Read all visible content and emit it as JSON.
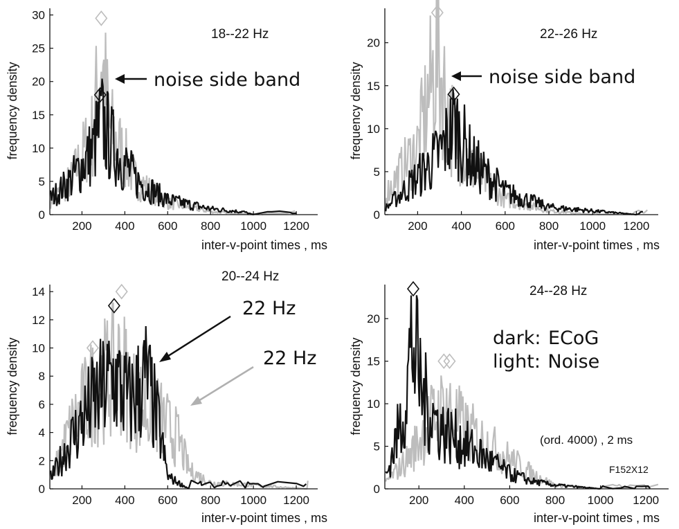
{
  "chart_data": [
    {
      "type": "line",
      "title": "18--22 Hz",
      "xlabel": "inter-v-point times ,  ms",
      "ylabel": "frequency density",
      "xlim": [
        50,
        1300
      ],
      "ylim": [
        0,
        31
      ],
      "xticks": [
        200,
        400,
        600,
        800,
        1000,
        1200
      ],
      "yticks": [
        0,
        5,
        10,
        15,
        20,
        25,
        30
      ],
      "series": [
        {
          "name": "dark",
          "color": "#111111",
          "x": [
            60,
            150,
            250,
            290,
            340,
            450,
            600,
            800,
            950,
            1000
          ],
          "y": [
            3,
            6,
            11,
            16,
            12,
            6,
            2.5,
            1,
            0.5,
            0
          ]
        },
        {
          "name": "light",
          "color": "#bdbdbd",
          "x": [
            60,
            150,
            250,
            290,
            330,
            450,
            600,
            800,
            1000
          ],
          "y": [
            2.5,
            6,
            14,
            27,
            15,
            6,
            2,
            0.5,
            0
          ]
        }
      ],
      "markers": [
        {
          "series": "light",
          "x": 290,
          "y": 29.5
        },
        {
          "series": "dark",
          "x": 285,
          "y": 18
        }
      ],
      "annotations": [
        {
          "text": "noise side band"
        }
      ]
    },
    {
      "type": "line",
      "title": "22--26 Hz",
      "xlabel": "inter-v-point times ,  ms",
      "ylabel": "frequency density",
      "xlim": [
        50,
        1300
      ],
      "ylim": [
        0,
        24
      ],
      "xticks": [
        200,
        400,
        600,
        800,
        1000,
        1200
      ],
      "yticks": [
        0,
        5,
        10,
        15,
        20
      ],
      "series": [
        {
          "name": "dark",
          "color": "#111111",
          "x": [
            60,
            200,
            300,
            370,
            450,
            600,
            800,
            1000,
            1200
          ],
          "y": [
            1,
            5,
            8,
            12,
            7,
            3,
            1,
            0.5,
            0
          ]
        },
        {
          "name": "light",
          "color": "#bdbdbd",
          "x": [
            60,
            200,
            290,
            350,
            450,
            600,
            800,
            1000
          ],
          "y": [
            3,
            9,
            21,
            12,
            6,
            2,
            0.5,
            0
          ]
        }
      ],
      "markers": [
        {
          "series": "light",
          "x": 290,
          "y": 23.5
        },
        {
          "series": "dark",
          "x": 365,
          "y": 14
        }
      ],
      "annotations": [
        {
          "text": "noise side band"
        }
      ]
    },
    {
      "type": "line",
      "title": "20--24 Hz",
      "xlabel": "inter-v-point times ,  ms",
      "ylabel": "frequency density",
      "xlim": [
        50,
        1300
      ],
      "ylim": [
        0,
        14.5
      ],
      "xticks": [
        200,
        400,
        600,
        800,
        1000,
        1200
      ],
      "yticks": [
        0,
        2,
        4,
        6,
        8,
        10,
        12,
        14
      ],
      "series": [
        {
          "name": "dark",
          "color": "#111111",
          "x": [
            60,
            150,
            250,
            350,
            420,
            500,
            560,
            600,
            700
          ],
          "y": [
            1,
            4,
            7,
            9,
            7,
            9,
            5,
            1,
            0
          ]
        },
        {
          "name": "light",
          "color": "#bdbdbd",
          "x": [
            60,
            150,
            250,
            380,
            450,
            550,
            650,
            700,
            800,
            1000,
            1250
          ],
          "y": [
            1,
            5,
            8,
            10,
            7,
            6,
            4,
            1.5,
            0.5,
            0.3,
            0
          ]
        }
      ],
      "markers": [
        {
          "series": "light",
          "x": 250,
          "y": 10
        },
        {
          "series": "dark",
          "x": 350,
          "y": 13
        },
        {
          "series": "light",
          "x": 385,
          "y": 14
        }
      ],
      "annotations": [
        {
          "text": "22 Hz"
        },
        {
          "text": "22 Hz"
        }
      ]
    },
    {
      "type": "line",
      "title": "24--28 Hz",
      "xlabel": "inter-v-point times ,  ms",
      "ylabel": "frequency density",
      "xlim": [
        50,
        1300
      ],
      "ylim": [
        0,
        24
      ],
      "xticks": [
        200,
        400,
        600,
        800,
        1000,
        1200
      ],
      "yticks": [
        0,
        5,
        10,
        15,
        20
      ],
      "series": [
        {
          "name": "dark",
          "color": "#111111",
          "x": [
            60,
            130,
            170,
            220,
            300,
            400,
            500,
            600,
            700,
            800,
            1000
          ],
          "y": [
            2,
            10,
            20,
            12,
            8,
            6,
            4,
            2,
            1,
            0.5,
            0
          ]
        },
        {
          "name": "light",
          "color": "#bdbdbd",
          "x": [
            60,
            150,
            250,
            320,
            400,
            500,
            600,
            700,
            800,
            1000
          ],
          "y": [
            1,
            4,
            9,
            11,
            8,
            6,
            4,
            2,
            0.5,
            0
          ]
        }
      ],
      "markers": [
        {
          "series": "dark",
          "x": 175,
          "y": 23.5
        },
        {
          "series": "light",
          "x": 310,
          "y": 15
        },
        {
          "series": "light",
          "x": 335,
          "y": 15
        }
      ],
      "annotations": [
        {
          "text": "dark:",
          "value": "ECoG"
        },
        {
          "text": "light:",
          "value": "Noise"
        },
        {
          "text": "(ord. 4000)  , 2 ms"
        },
        {
          "text": "F152X12"
        }
      ]
    }
  ],
  "texts": {
    "p0_title": "18--22 Hz",
    "p0_note": "noise side band",
    "p1_title": "22--26 Hz",
    "p1_note": "noise side band",
    "p2_title": "20--24 Hz",
    "p2_arrow_dark": "22 Hz",
    "p2_arrow_light": "22 Hz",
    "p3_title": "24--28 Hz",
    "legend_dark_key": "dark:",
    "legend_dark_val": "ECoG",
    "legend_light_key": "light:",
    "legend_light_val": "Noise",
    "order_note": "(ord. 4000)  , 2 ms",
    "figure_id": "F152X12",
    "xlabel": "inter-v-point times ,  ms",
    "ylabel": "frequency density"
  }
}
